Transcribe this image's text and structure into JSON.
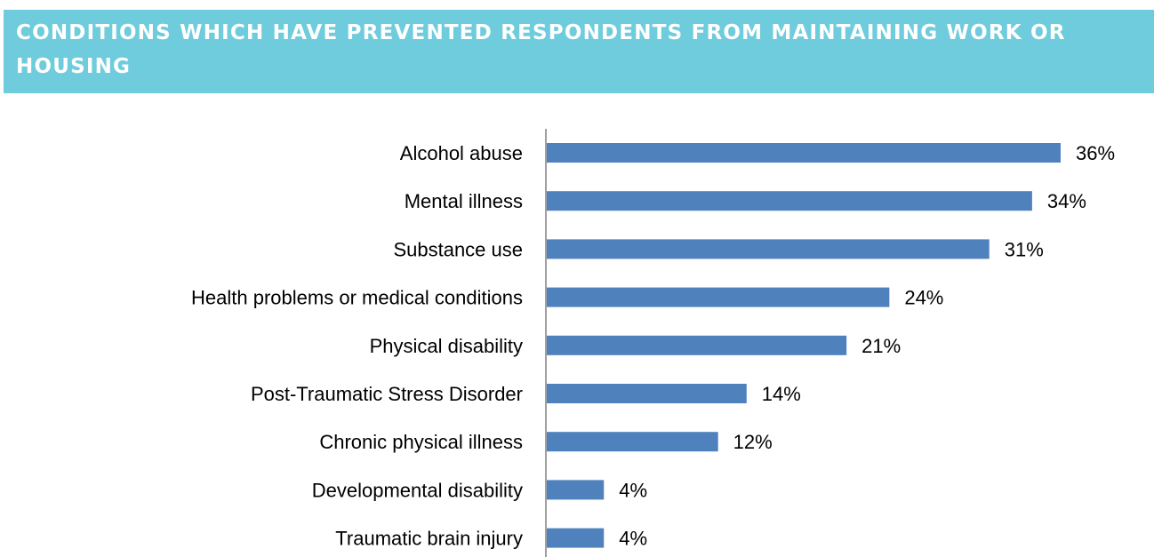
{
  "banner": {
    "title": "CONDITIONS WHICH HAVE PREVENTED RESPONDENTS FROM MAINTAINING WORK OR HOUSING"
  },
  "colors": {
    "banner_bg": "#6ECCDD",
    "banner_text": "#FFFFFF",
    "bar": "#4F81BD",
    "axis": "#808080",
    "text": "#000000"
  },
  "chart_data": {
    "type": "bar",
    "orientation": "horizontal",
    "title": "CONDITIONS WHICH HAVE PREVENTED RESPONDENTS FROM MAINTAINING WORK OR HOUSING",
    "categories": [
      "Alcohol abuse",
      "Mental illness",
      "Substance use",
      "Health problems or medical conditions",
      "Physical disability",
      "Post-Traumatic Stress Disorder",
      "Chronic physical illness",
      "Developmental disability",
      "Traumatic brain injury"
    ],
    "values": [
      36,
      34,
      31,
      24,
      21,
      14,
      12,
      4,
      4
    ],
    "value_labels": [
      "36%",
      "34%",
      "31%",
      "24%",
      "21%",
      "14%",
      "12%",
      "4%",
      "4%"
    ],
    "unit": "%",
    "xlim": [
      0,
      40
    ],
    "grid": false,
    "legend": "none"
  }
}
